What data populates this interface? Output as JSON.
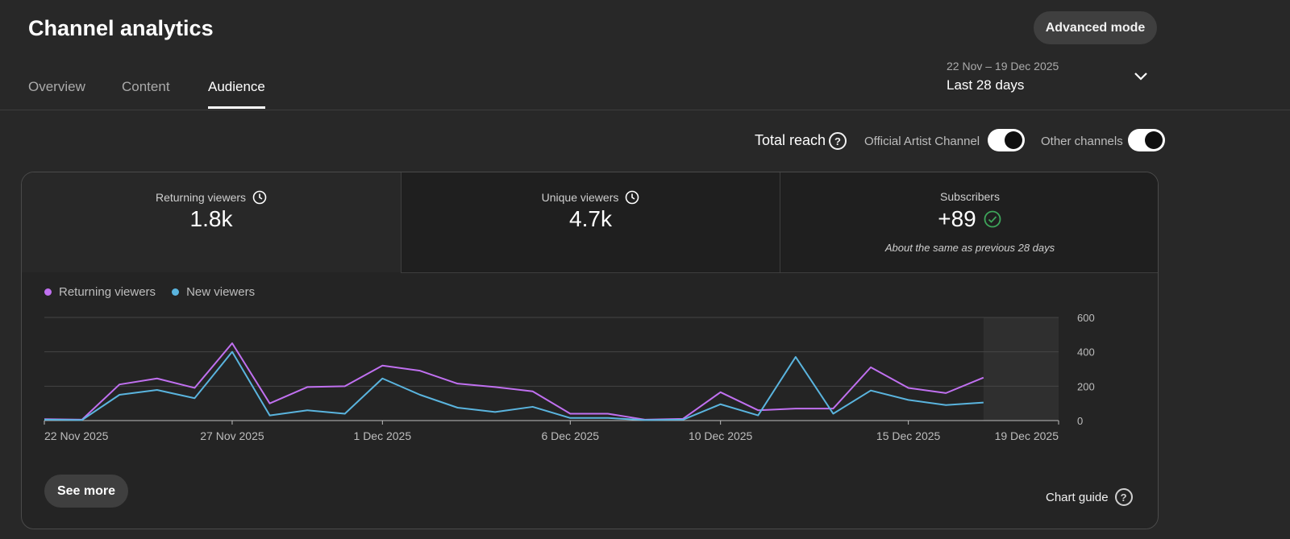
{
  "header": {
    "title": "Channel analytics",
    "advanced_mode_label": "Advanced mode"
  },
  "tabs": [
    {
      "label": "Overview",
      "active": false
    },
    {
      "label": "Content",
      "active": false
    },
    {
      "label": "Audience",
      "active": true
    }
  ],
  "date_picker": {
    "range": "22 Nov – 19 Dec 2025",
    "label": "Last 28 days",
    "icon": "chevron-down-icon"
  },
  "reach": {
    "label": "Total reach",
    "help_icon": "help-circle-icon",
    "toggles": [
      {
        "label": "Official Artist Channel",
        "on": true
      },
      {
        "label": "Other channels",
        "on": true
      }
    ]
  },
  "metrics": [
    {
      "label": "Returning viewers",
      "value": "1.8k",
      "icon": "clock-icon",
      "selected": true
    },
    {
      "label": "Unique viewers",
      "value": "4.7k",
      "icon": "clock-icon",
      "selected": false
    },
    {
      "label": "Subscribers",
      "value": "+89",
      "icon": "check-circle-icon",
      "note": "About the same as previous 28 days",
      "selected": false
    }
  ],
  "chart_data": {
    "type": "line",
    "x": [
      "22 Nov 2025",
      "23 Nov 2025",
      "24 Nov 2025",
      "25 Nov 2025",
      "26 Nov 2025",
      "27 Nov 2025",
      "28 Nov 2025",
      "29 Nov 2025",
      "30 Nov 2025",
      "1 Dec 2025",
      "2 Dec 2025",
      "3 Dec 2025",
      "4 Dec 2025",
      "5 Dec 2025",
      "6 Dec 2025",
      "7 Dec 2025",
      "8 Dec 2025",
      "9 Dec 2025",
      "10 Dec 2025",
      "11 Dec 2025",
      "12 Dec 2025",
      "13 Dec 2025",
      "14 Dec 2025",
      "15 Dec 2025",
      "16 Dec 2025",
      "17 Dec 2025"
    ],
    "x_ticks": [
      "22 Nov 2025",
      "27 Nov 2025",
      "1 Dec 2025",
      "6 Dec 2025",
      "10 Dec 2025",
      "15 Dec 2025",
      "19 Dec 2025"
    ],
    "y_ticks": [
      0,
      200,
      400,
      600
    ],
    "ylim": [
      0,
      600
    ],
    "xlim": [
      "22 Nov 2025",
      "19 Dec 2025"
    ],
    "grid": true,
    "legend": "top-left",
    "series": [
      {
        "name": "Returning viewers",
        "color": "#c070f0",
        "values": [
          8,
          5,
          210,
          245,
          190,
          450,
          100,
          195,
          200,
          320,
          290,
          215,
          195,
          170,
          40,
          40,
          5,
          10,
          165,
          60,
          70,
          70,
          310,
          190,
          160,
          250
        ]
      },
      {
        "name": "New viewers",
        "color": "#5ab4de",
        "values": [
          5,
          3,
          150,
          178,
          130,
          400,
          30,
          60,
          40,
          245,
          150,
          75,
          50,
          80,
          15,
          15,
          3,
          5,
          95,
          30,
          370,
          40,
          175,
          120,
          90,
          105
        ]
      }
    ]
  },
  "footer": {
    "see_more_label": "See more",
    "chart_guide_label": "Chart guide"
  }
}
